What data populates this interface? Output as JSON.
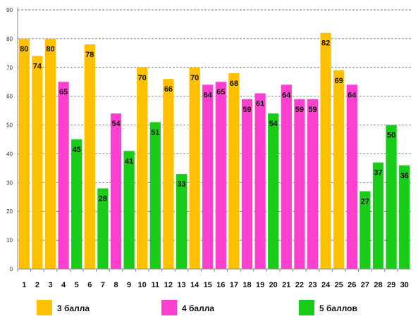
{
  "chart_data": {
    "type": "bar",
    "categories": [
      "1",
      "2",
      "3",
      "4",
      "5",
      "6",
      "7",
      "8",
      "9",
      "10",
      "11",
      "12",
      "13",
      "14",
      "15",
      "16",
      "17",
      "18",
      "19",
      "20",
      "21",
      "22",
      "23",
      "24",
      "25",
      "26",
      "27",
      "28",
      "29",
      "30"
    ],
    "values": [
      80,
      74,
      80,
      65,
      45,
      78,
      28,
      54,
      41,
      70,
      51,
      66,
      33,
      70,
      64,
      65,
      68,
      59,
      61,
      54,
      64,
      59,
      59,
      82,
      69,
      64,
      27,
      37,
      50,
      36
    ],
    "groups": [
      "g3",
      "g3",
      "g3",
      "g4",
      "g5",
      "g3",
      "g5",
      "g4",
      "g5",
      "g3",
      "g5",
      "g3",
      "g5",
      "g3",
      "g4",
      "g4",
      "g3",
      "g4",
      "g4",
      "g5",
      "g4",
      "g4",
      "g4",
      "g3",
      "g3",
      "g4",
      "g5",
      "g5",
      "g5",
      "g5"
    ],
    "ylim": [
      0,
      90
    ],
    "yticks": [
      0,
      10,
      20,
      30,
      40,
      50,
      60,
      70,
      80,
      90
    ],
    "grid": true,
    "legend_position": "bottom",
    "legend": [
      {
        "key": "g3",
        "label": "3 балла",
        "color": "#FFC000"
      },
      {
        "key": "g4",
        "label": "4 балла",
        "color": "#FF3FCF"
      },
      {
        "key": "g5",
        "label": "5 баллов",
        "color": "#1ACC1A"
      }
    ]
  }
}
